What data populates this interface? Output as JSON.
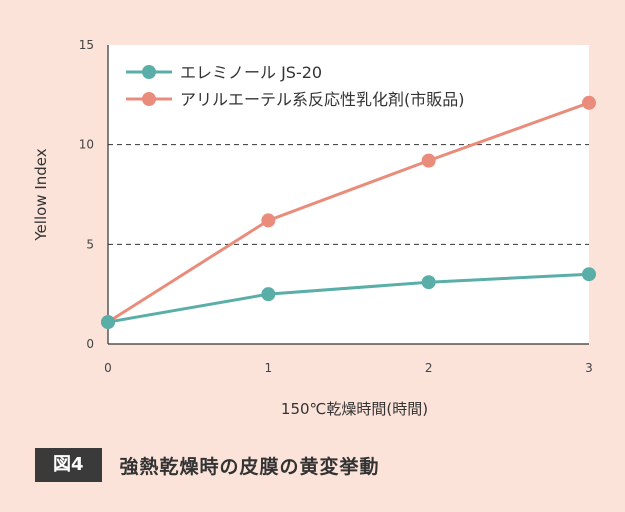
{
  "caption": {
    "figure_label": "図4",
    "title": "強熱乾燥時の皮膜の黄変挙動"
  },
  "chart_data": {
    "type": "line",
    "x": [
      0,
      1,
      2,
      3
    ],
    "xticks": [
      "0",
      "1",
      "2",
      "3"
    ],
    "yticks": [
      "0",
      "5",
      "10",
      "15"
    ],
    "xlim": [
      0,
      3
    ],
    "ylim": [
      0,
      15
    ],
    "xlabel": "150℃乾燥時間(時間)",
    "ylabel": "Yellow Index",
    "grid": "horizontal dashed at 5 and 10",
    "legend_position": "top-left",
    "series": [
      {
        "name": "エレミノール JS-20",
        "color": "#5aaea8",
        "values": [
          1.1,
          2.5,
          3.1,
          3.5
        ]
      },
      {
        "name": "アリルエーテル系反応性乳化剤(市販品)",
        "color": "#ea8c7b",
        "values": [
          1.1,
          6.2,
          9.2,
          12.1
        ]
      }
    ]
  }
}
